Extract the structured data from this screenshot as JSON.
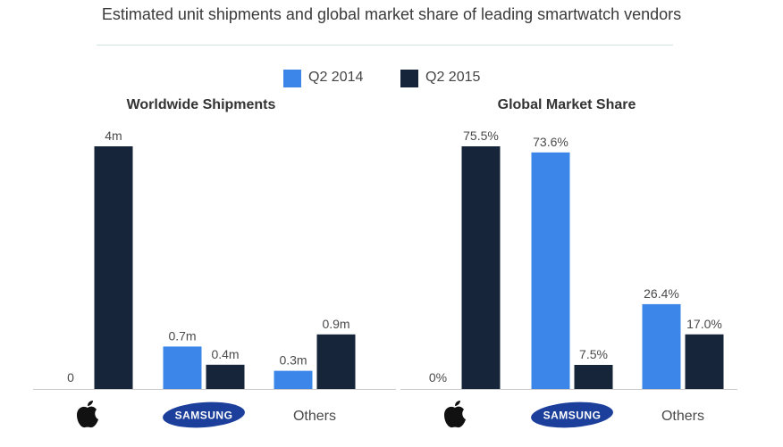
{
  "title": "Estimated unit shipments and global market share of leading smartwatch vendors",
  "legend": [
    {
      "label": "Q2 2014",
      "color": "#3b86e8"
    },
    {
      "label": "Q2 2015",
      "color": "#17253a"
    }
  ],
  "chart_data": [
    {
      "type": "bar",
      "title": "Worldwide Shipments",
      "categories": [
        "Apple",
        "Samsung",
        "Others"
      ],
      "category_display": [
        "apple-logo",
        "samsung-logo",
        "Others"
      ],
      "series": [
        {
          "name": "Q2 2014",
          "values": [
            0,
            0.7,
            0.3
          ],
          "labels": [
            "0",
            "0.7m",
            "0.3m"
          ]
        },
        {
          "name": "Q2 2015",
          "values": [
            4,
            0.4,
            0.9
          ],
          "labels": [
            "4m",
            "0.4m",
            "0.9m"
          ]
        }
      ],
      "ylim": [
        0,
        4
      ],
      "unit": "million units"
    },
    {
      "type": "bar",
      "title": "Global Market Share",
      "categories": [
        "Apple",
        "Samsung",
        "Others"
      ],
      "category_display": [
        "apple-logo",
        "samsung-logo",
        "Others"
      ],
      "series": [
        {
          "name": "Q2 2014",
          "values": [
            0,
            73.6,
            26.4
          ],
          "labels": [
            "0%",
            "73.6%",
            "26.4%"
          ]
        },
        {
          "name": "Q2 2015",
          "values": [
            75.5,
            7.5,
            17.0
          ],
          "labels": [
            "75.5%",
            "7.5%",
            "17.0%"
          ]
        }
      ],
      "ylim": [
        0,
        75.5
      ],
      "unit": "percent"
    }
  ],
  "logos": {
    "samsung_text": "SAMSUNG"
  }
}
